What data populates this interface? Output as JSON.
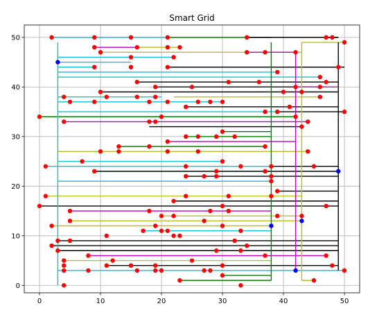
{
  "chart_data": {
    "type": "scatter",
    "title": "Smart Grid",
    "xlabel": "",
    "ylabel": "",
    "xlim": [
      -2.5,
      52.5
    ],
    "ylim": [
      -1.5,
      52.5
    ],
    "xticks": [
      0,
      10,
      20,
      30,
      40,
      50
    ],
    "yticks": [
      0,
      10,
      20,
      30,
      40,
      50
    ],
    "grid": true,
    "legend": "none",
    "point_colors": {
      "consumer": "#ff0000",
      "source": "#0000ff"
    },
    "sources": [
      [
        3,
        45
      ],
      [
        38,
        12
      ],
      [
        42,
        3
      ],
      [
        43,
        13
      ],
      [
        49,
        23
      ]
    ],
    "bus_lines": [
      {
        "color": "#17becf",
        "x": 3,
        "y": [
          0,
          49
        ]
      },
      {
        "color": "#bcbd22",
        "x": 43,
        "y": [
          1,
          49
        ]
      },
      {
        "color": "#000000",
        "x": 49,
        "y": [
          3,
          49
        ]
      },
      {
        "color": "#008000",
        "x": 38,
        "y": [
          1,
          49
        ]
      },
      {
        "color": "#bf00bf",
        "x": 42,
        "y": [
          3,
          47
        ]
      }
    ],
    "connections": [
      {
        "color": "#17becf",
        "y": 50,
        "x": [
          2,
          21
        ]
      },
      {
        "color": "#008000",
        "y": 50,
        "x": [
          21,
          38
        ]
      },
      {
        "color": "#000000",
        "y": 50,
        "x": [
          34,
          49
        ]
      },
      {
        "color": "#000000",
        "y": 50,
        "x": [
          47,
          49
        ]
      },
      {
        "color": "#bcbd22",
        "y": 49,
        "x": [
          43,
          50
        ]
      },
      {
        "color": "#bf00bf",
        "y": 48,
        "x": [
          9,
          16
        ]
      },
      {
        "color": "#bcbd22",
        "y": 48,
        "x": [
          16,
          23
        ]
      },
      {
        "color": "#bcbd22",
        "y": 47,
        "x": [
          10,
          43
        ]
      },
      {
        "color": "#bf00bf",
        "y": 47,
        "x": [
          34,
          42
        ]
      },
      {
        "color": "#17becf",
        "y": 46,
        "x": [
          3,
          22
        ]
      },
      {
        "color": "#17becf",
        "y": 45,
        "x": [
          3,
          15
        ]
      },
      {
        "color": "#17becf",
        "y": 44,
        "x": [
          3,
          9
        ]
      },
      {
        "color": "#000000",
        "y": 44,
        "x": [
          21,
          50
        ]
      },
      {
        "color": "#17becf",
        "y": 43,
        "x": [
          3,
          39
        ]
      },
      {
        "color": "#17becf",
        "y": 42,
        "x": [
          3,
          46
        ]
      },
      {
        "color": "#000000",
        "y": 41,
        "x": [
          16,
          49
        ]
      },
      {
        "color": "#000000",
        "y": 40,
        "x": [
          19,
          47
        ]
      },
      {
        "color": "#bf00bf",
        "y": 40,
        "x": [
          42,
          49
        ]
      },
      {
        "color": "#000000",
        "y": 39,
        "x": [
          10,
          49
        ]
      },
      {
        "color": "#17becf",
        "y": 38,
        "x": [
          3,
          20
        ]
      },
      {
        "color": "#bcbd22",
        "y": 38,
        "x": [
          22,
          46
        ]
      },
      {
        "color": "#17becf",
        "y": 37,
        "x": [
          3,
          30
        ]
      },
      {
        "color": "#000000",
        "y": 36,
        "x": [
          24,
          49
        ]
      },
      {
        "color": "#17becf",
        "y": 35,
        "x": [
          3,
          39
        ]
      },
      {
        "color": "#000000",
        "y": 35,
        "x": [
          39,
          50
        ]
      },
      {
        "color": "#008000",
        "y": 34,
        "x": [
          0,
          42
        ]
      },
      {
        "color": "#bf00bf",
        "y": 33,
        "x": [
          4,
          44
        ]
      },
      {
        "color": "#000000",
        "y": 32,
        "x": [
          18,
          43
        ]
      },
      {
        "color": "#008000",
        "y": 31,
        "x": [
          30,
          38
        ]
      },
      {
        "color": "#008000",
        "y": 30,
        "x": [
          24,
          38
        ]
      },
      {
        "color": "#bf00bf",
        "y": 29,
        "x": [
          21,
          42
        ]
      },
      {
        "color": "#008000",
        "y": 28,
        "x": [
          13,
          37
        ]
      },
      {
        "color": "#bcbd22",
        "y": 27,
        "x": [
          3,
          44
        ]
      },
      {
        "color": "#17becf",
        "y": 25,
        "x": [
          3,
          30
        ]
      },
      {
        "color": "#17becf",
        "y": 24,
        "x": [
          1,
          38
        ]
      },
      {
        "color": "#000000",
        "y": 24,
        "x": [
          38,
          49
        ]
      },
      {
        "color": "#000000",
        "y": 23,
        "x": [
          9,
          49
        ]
      },
      {
        "color": "#000000",
        "y": 22,
        "x": [
          24,
          49
        ]
      },
      {
        "color": "#17becf",
        "y": 21,
        "x": [
          3,
          38
        ]
      },
      {
        "color": "#000000",
        "y": 19,
        "x": [
          39,
          49
        ]
      },
      {
        "color": "#bcbd22",
        "y": 18,
        "x": [
          1,
          43
        ]
      },
      {
        "color": "#000000",
        "y": 17,
        "x": [
          22,
          49
        ]
      },
      {
        "color": "#000000",
        "y": 16,
        "x": [
          0,
          49
        ]
      },
      {
        "color": "#bf00bf",
        "y": 15,
        "x": [
          5,
          38
        ]
      },
      {
        "color": "#bcbd22",
        "y": 14,
        "x": [
          20,
          43
        ]
      },
      {
        "color": "#bcbd22",
        "y": 13,
        "x": [
          5,
          43
        ]
      },
      {
        "color": "#bcbd22",
        "y": 12,
        "x": [
          2,
          38
        ]
      },
      {
        "color": "#17becf",
        "y": 11,
        "x": [
          17,
          38
        ]
      },
      {
        "color": "#000000",
        "y": 9,
        "x": [
          3,
          49
        ]
      },
      {
        "color": "#000000",
        "y": 8,
        "x": [
          2,
          49
        ]
      },
      {
        "color": "#000000",
        "y": 7,
        "x": [
          3,
          49
        ]
      },
      {
        "color": "#bf00bf",
        "y": 6,
        "x": [
          8,
          47
        ]
      },
      {
        "color": "#bcbd22",
        "y": 5,
        "x": [
          4,
          38
        ]
      },
      {
        "color": "#000000",
        "y": 4,
        "x": [
          11,
          49
        ]
      },
      {
        "color": "#17becf",
        "y": 3,
        "x": [
          3,
          50
        ]
      },
      {
        "color": "#008000",
        "y": 2,
        "x": [
          30,
          38
        ]
      },
      {
        "color": "#008000",
        "y": 1,
        "x": [
          23,
          38
        ]
      },
      {
        "color": "#bcbd22",
        "y": 1,
        "x": [
          43,
          45
        ]
      }
    ],
    "consumers": [
      [
        2,
        50
      ],
      [
        9,
        50
      ],
      [
        15,
        50
      ],
      [
        21,
        50
      ],
      [
        34,
        50
      ],
      [
        47,
        50
      ],
      [
        48,
        50
      ],
      [
        50,
        49
      ],
      [
        9,
        48
      ],
      [
        16,
        48
      ],
      [
        21,
        48
      ],
      [
        23,
        48
      ],
      [
        10,
        47
      ],
      [
        34,
        47
      ],
      [
        37,
        47
      ],
      [
        42,
        47
      ],
      [
        15,
        46
      ],
      [
        22,
        46
      ],
      [
        9,
        44
      ],
      [
        15,
        44
      ],
      [
        21,
        44
      ],
      [
        49,
        44
      ],
      [
        39,
        43
      ],
      [
        46,
        42
      ],
      [
        16,
        41
      ],
      [
        31,
        41
      ],
      [
        36,
        41
      ],
      [
        47,
        41
      ],
      [
        19,
        40
      ],
      [
        25,
        40
      ],
      [
        42,
        40
      ],
      [
        46,
        40
      ],
      [
        10,
        39
      ],
      [
        40,
        39
      ],
      [
        43,
        39
      ],
      [
        4,
        38
      ],
      [
        11,
        38
      ],
      [
        16,
        38
      ],
      [
        19,
        38
      ],
      [
        46,
        38
      ],
      [
        5,
        37
      ],
      [
        9,
        37
      ],
      [
        18,
        37
      ],
      [
        21,
        37
      ],
      [
        26,
        37
      ],
      [
        28,
        37
      ],
      [
        30,
        37
      ],
      [
        24,
        36
      ],
      [
        41,
        36
      ],
      [
        37,
        35
      ],
      [
        39,
        35
      ],
      [
        50,
        35
      ],
      [
        0,
        34
      ],
      [
        20,
        34
      ],
      [
        42,
        34
      ],
      [
        4,
        33
      ],
      [
        18,
        33
      ],
      [
        19,
        33
      ],
      [
        44,
        33
      ],
      [
        43,
        32
      ],
      [
        30,
        31
      ],
      [
        24,
        30
      ],
      [
        26,
        30
      ],
      [
        29,
        30
      ],
      [
        32,
        30
      ],
      [
        21,
        29
      ],
      [
        13,
        28
      ],
      [
        18,
        28
      ],
      [
        37,
        28
      ],
      [
        10,
        27
      ],
      [
        13,
        27
      ],
      [
        21,
        27
      ],
      [
        26,
        27
      ],
      [
        44,
        27
      ],
      [
        7,
        25
      ],
      [
        30,
        25
      ],
      [
        1,
        24
      ],
      [
        24,
        24
      ],
      [
        33,
        24
      ],
      [
        38,
        24
      ],
      [
        45,
        24
      ],
      [
        9,
        23
      ],
      [
        29,
        23
      ],
      [
        37,
        23
      ],
      [
        24,
        22
      ],
      [
        27,
        22
      ],
      [
        29,
        22
      ],
      [
        38,
        22
      ],
      [
        38,
        21
      ],
      [
        39,
        19
      ],
      [
        1,
        18
      ],
      [
        24,
        18
      ],
      [
        31,
        18
      ],
      [
        38,
        18
      ],
      [
        22,
        17
      ],
      [
        0,
        16
      ],
      [
        30,
        16
      ],
      [
        47,
        16
      ],
      [
        5,
        15
      ],
      [
        18,
        15
      ],
      [
        28,
        15
      ],
      [
        31,
        15
      ],
      [
        20,
        14
      ],
      [
        22,
        14
      ],
      [
        39,
        14
      ],
      [
        43,
        14
      ],
      [
        5,
        13
      ],
      [
        27,
        13
      ],
      [
        2,
        12
      ],
      [
        19,
        12
      ],
      [
        30,
        12
      ],
      [
        17,
        11
      ],
      [
        20,
        11
      ],
      [
        21,
        11
      ],
      [
        33,
        11
      ],
      [
        11,
        10
      ],
      [
        22,
        10
      ],
      [
        23,
        10
      ],
      [
        32,
        9
      ],
      [
        3,
        9
      ],
      [
        5,
        9
      ],
      [
        2,
        8
      ],
      [
        34,
        8
      ],
      [
        3,
        7
      ],
      [
        29,
        7
      ],
      [
        33,
        7
      ],
      [
        8,
        6
      ],
      [
        37,
        6
      ],
      [
        47,
        6
      ],
      [
        4,
        5
      ],
      [
        12,
        5
      ],
      [
        25,
        5
      ],
      [
        4,
        4
      ],
      [
        11,
        4
      ],
      [
        15,
        4
      ],
      [
        19,
        4
      ],
      [
        30,
        4
      ],
      [
        48,
        4
      ],
      [
        4,
        3
      ],
      [
        8,
        3
      ],
      [
        16,
        3
      ],
      [
        19,
        3
      ],
      [
        20,
        3
      ],
      [
        27,
        3
      ],
      [
        28,
        3
      ],
      [
        50,
        3
      ],
      [
        30,
        2
      ],
      [
        23,
        1
      ],
      [
        45,
        1
      ],
      [
        4,
        0
      ],
      [
        33,
        0
      ]
    ]
  }
}
